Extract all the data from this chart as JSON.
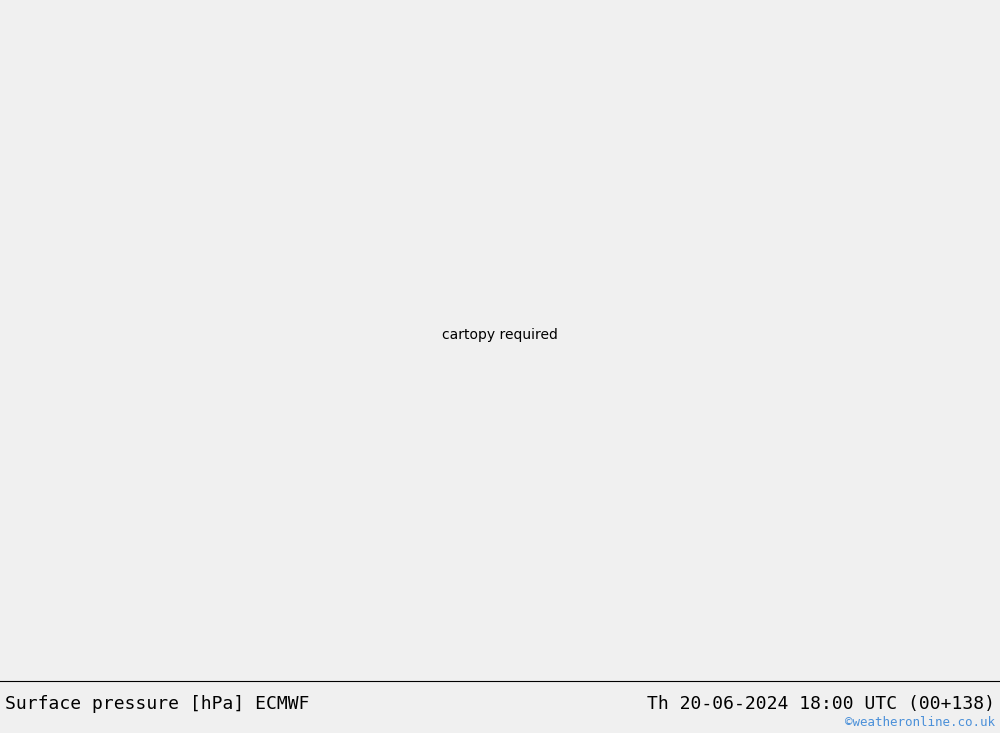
{
  "title_left": "Surface pressure [hPa] ECMWF",
  "title_right": "Th 20-06-2024 18:00 UTC (00+138)",
  "watermark": "©weatheronline.co.uk",
  "land_color": "#c8f0a0",
  "ocean_color": "#d8d8d8",
  "bottom_bar_color": "#f0f0f0",
  "title_fontsize": 13,
  "watermark_color": "#4a90d9",
  "lon_min": -45,
  "lon_max": 55,
  "lat_min": 25,
  "lat_max": 75
}
